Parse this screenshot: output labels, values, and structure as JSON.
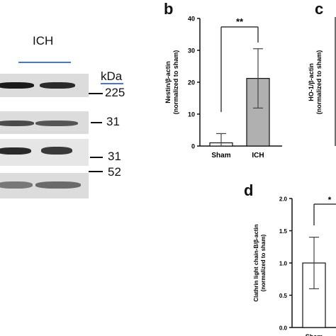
{
  "western_blot": {
    "group_label": "ICH",
    "unit_label": "kDa",
    "markers": [
      "225",
      "31",
      "31",
      "52"
    ]
  },
  "chart_data": [
    {
      "panel": "b",
      "type": "bar",
      "categories": [
        "Sham",
        "ICH"
      ],
      "values": [
        1.0,
        21.2
      ],
      "errors": [
        2.9,
        9.3
      ],
      "ylabel_line1": "Nestin/β-actin",
      "ylabel_line2": "(normalized to sham)",
      "ylim": [
        0,
        40
      ],
      "yticks": [
        "0",
        "10",
        "20",
        "30",
        "40"
      ],
      "significance": "**",
      "bar_colors": [
        "#ffffff",
        "#b0b0b0"
      ]
    },
    {
      "panel": "c",
      "type": "bar",
      "ylabel_line1": "HO-1/β-actin",
      "ylabel_line2": "(normalized to sham)"
    },
    {
      "panel": "d",
      "type": "bar",
      "categories": [
        "Sham"
      ],
      "values": [
        1.0
      ],
      "errors": [
        0.4
      ],
      "ylabel_line1": "Clathrin light chain-B/β-actin",
      "ylabel_line2": "(normalized to sham)",
      "ylim": [
        0,
        2.0
      ],
      "yticks": [
        "0.0",
        "0.5",
        "1.0",
        "1.5",
        "2.0"
      ],
      "significance": "*",
      "bar_colors": [
        "#ffffff"
      ]
    }
  ]
}
